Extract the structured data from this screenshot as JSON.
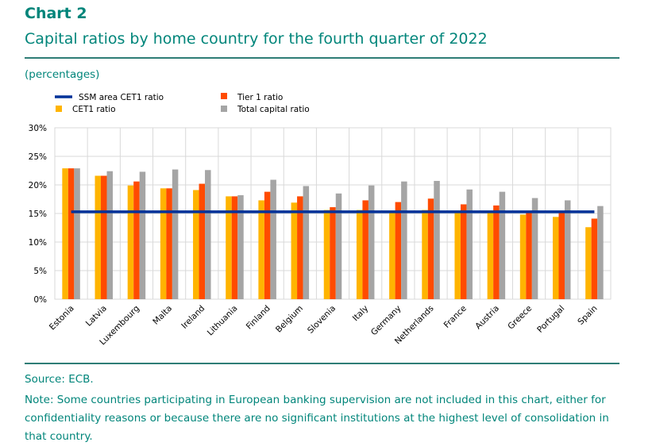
{
  "header": {
    "chart_label": "Chart 2",
    "title": "Capital ratios by home country for the fourth quarter of 2022",
    "unit": "(percentages)"
  },
  "footer": {
    "source": "Source: ECB.",
    "note": "Note: Some countries participating in European banking supervision are not included in this chart, either for confidentiality reasons or because there are no significant institutions at the highest level of consolidation in that country."
  },
  "colors": {
    "cet1": "#ffb400",
    "tier1": "#ff4b00",
    "total": "#a5a5a5",
    "ssm_line": "#003299",
    "grid": "#d9d9d9"
  },
  "chart_data": {
    "type": "bar",
    "title": "Capital ratios by home country for the fourth quarter of 2022",
    "xlabel": "",
    "ylabel": "(percentages)",
    "ylim": [
      0,
      30
    ],
    "yticks": [
      "0%",
      "5%",
      "10%",
      "15%",
      "20%",
      "25%",
      "30%"
    ],
    "grid": true,
    "legend_position": "top-left",
    "legend": {
      "ssm": "SSM area CET1 ratio",
      "tier1": "Tier 1 ratio",
      "cet1": "CET1 ratio",
      "total": "Total capital ratio"
    },
    "categories": [
      "Estonia",
      "Latvia",
      "Luxembourg",
      "Malta",
      "Ireland",
      "Lithuania",
      "Finland",
      "Belgium",
      "Slovenia",
      "Italy",
      "Germany",
      "Netherlands",
      "France",
      "Austria",
      "Greece",
      "Portugal",
      "Spain"
    ],
    "series": [
      {
        "name": "CET1 ratio",
        "key": "cet1",
        "values": [
          22.9,
          21.6,
          19.9,
          19.4,
          19.1,
          18.0,
          17.3,
          16.9,
          15.6,
          15.6,
          15.4,
          15.6,
          15.4,
          15.4,
          14.8,
          14.4,
          12.6
        ]
      },
      {
        "name": "Tier 1 ratio",
        "key": "tier1",
        "values": [
          22.9,
          21.6,
          20.6,
          19.4,
          20.2,
          18.0,
          18.8,
          18.0,
          16.1,
          17.3,
          17.0,
          17.6,
          16.6,
          16.4,
          15.2,
          15.2,
          14.1
        ]
      },
      {
        "name": "Total capital ratio",
        "key": "total",
        "values": [
          22.9,
          22.4,
          22.3,
          22.7,
          22.6,
          18.2,
          20.9,
          19.8,
          18.5,
          19.9,
          20.6,
          20.7,
          19.2,
          18.8,
          17.7,
          17.3,
          16.3
        ]
      }
    ],
    "reference_line": {
      "name": "SSM area CET1 ratio",
      "value": 15.3
    }
  }
}
